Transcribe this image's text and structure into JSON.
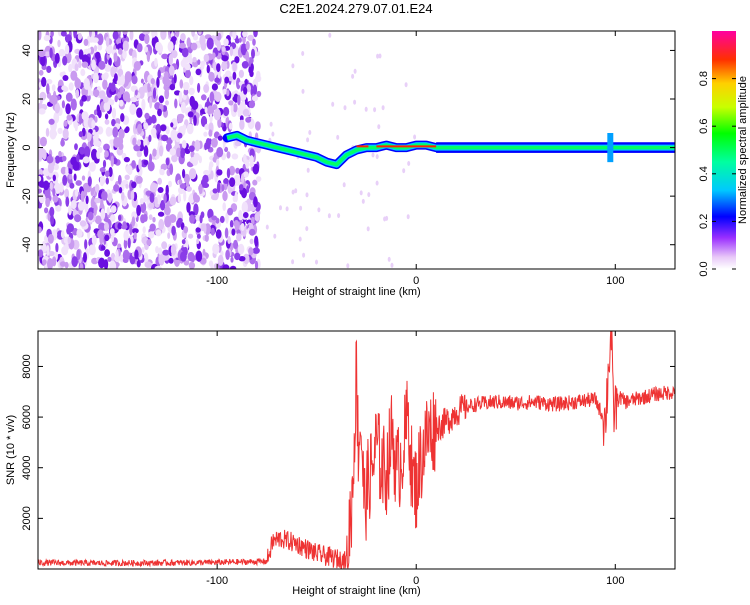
{
  "title": "C2E1.2024.279.07.01.E24",
  "chart_data": [
    {
      "type": "heatmap",
      "xlabel": "Height of straight line (km)",
      "ylabel": "Frequency (Hz)",
      "xlim": [
        -190,
        130
      ],
      "ylim": [
        -50,
        48
      ],
      "xticks": [
        -100,
        0,
        100
      ],
      "yticks": [
        -40,
        -20,
        0,
        20,
        40
      ],
      "colorbar": {
        "label": "Normalized spectral amplitude",
        "range": [
          0,
          1
        ],
        "ticks": [
          0.0,
          0.2,
          0.4,
          0.6,
          0.8
        ],
        "tick_labels": [
          "0.0",
          "0.2",
          "0.4",
          "0.6",
          "0.8"
        ]
      },
      "noise_region_x": [
        -190,
        -79
      ],
      "signal_trace": {
        "x": [
          -95,
          -90,
          -85,
          -80,
          -75,
          -70,
          -65,
          -60,
          -55,
          -50,
          -45,
          -40,
          -35,
          -30,
          -25,
          -20,
          -15,
          -10,
          -5,
          0,
          5,
          10,
          15,
          30,
          60,
          95,
          100,
          130
        ],
        "y": [
          4,
          5,
          3,
          2,
          1,
          0,
          -1,
          -2,
          -3,
          -4,
          -6,
          -7,
          -3,
          -1,
          0,
          0,
          1,
          0,
          0,
          1,
          1,
          0,
          0,
          0,
          0,
          0,
          0,
          0
        ]
      }
    },
    {
      "type": "line",
      "xlabel": "Height of straight line (km)",
      "ylabel": "SNR (10 * v/v)",
      "xlim": [
        -190,
        130
      ],
      "ylim": [
        0,
        9400
      ],
      "xticks": [
        -100,
        0,
        100
      ],
      "yticks": [
        2000,
        4000,
        6000,
        8000
      ],
      "color": "#ee3333",
      "series": [
        {
          "x": [
            -190,
            -160,
            -130,
            -100,
            -75,
            -72,
            -68,
            -60,
            -55,
            -50,
            -45,
            -40,
            -35,
            -32,
            -30,
            -29,
            -28,
            -26,
            -24,
            -22,
            -20,
            -18,
            -15,
            -12,
            -10,
            -8,
            -6,
            -4,
            -2,
            0,
            2,
            5,
            8,
            10,
            15,
            20,
            25,
            30,
            40,
            50,
            60,
            70,
            80,
            90,
            95,
            97,
            98,
            99,
            100,
            102,
            105,
            110,
            120,
            130
          ],
          "y": [
            250,
            230,
            240,
            260,
            300,
            1100,
            1200,
            1000,
            800,
            600,
            500,
            400,
            300,
            3000,
            8000,
            4500,
            6000,
            2500,
            3500,
            4000,
            5000,
            4200,
            3800,
            5500,
            3800,
            4200,
            5000,
            6200,
            3500,
            3200,
            4200,
            5200,
            5500,
            5600,
            5800,
            6200,
            6400,
            6500,
            6600,
            6550,
            6600,
            6500,
            6600,
            6700,
            5800,
            8500,
            9200,
            6200,
            6400,
            6800,
            6600,
            6700,
            6900,
            7000
          ]
        }
      ]
    }
  ]
}
